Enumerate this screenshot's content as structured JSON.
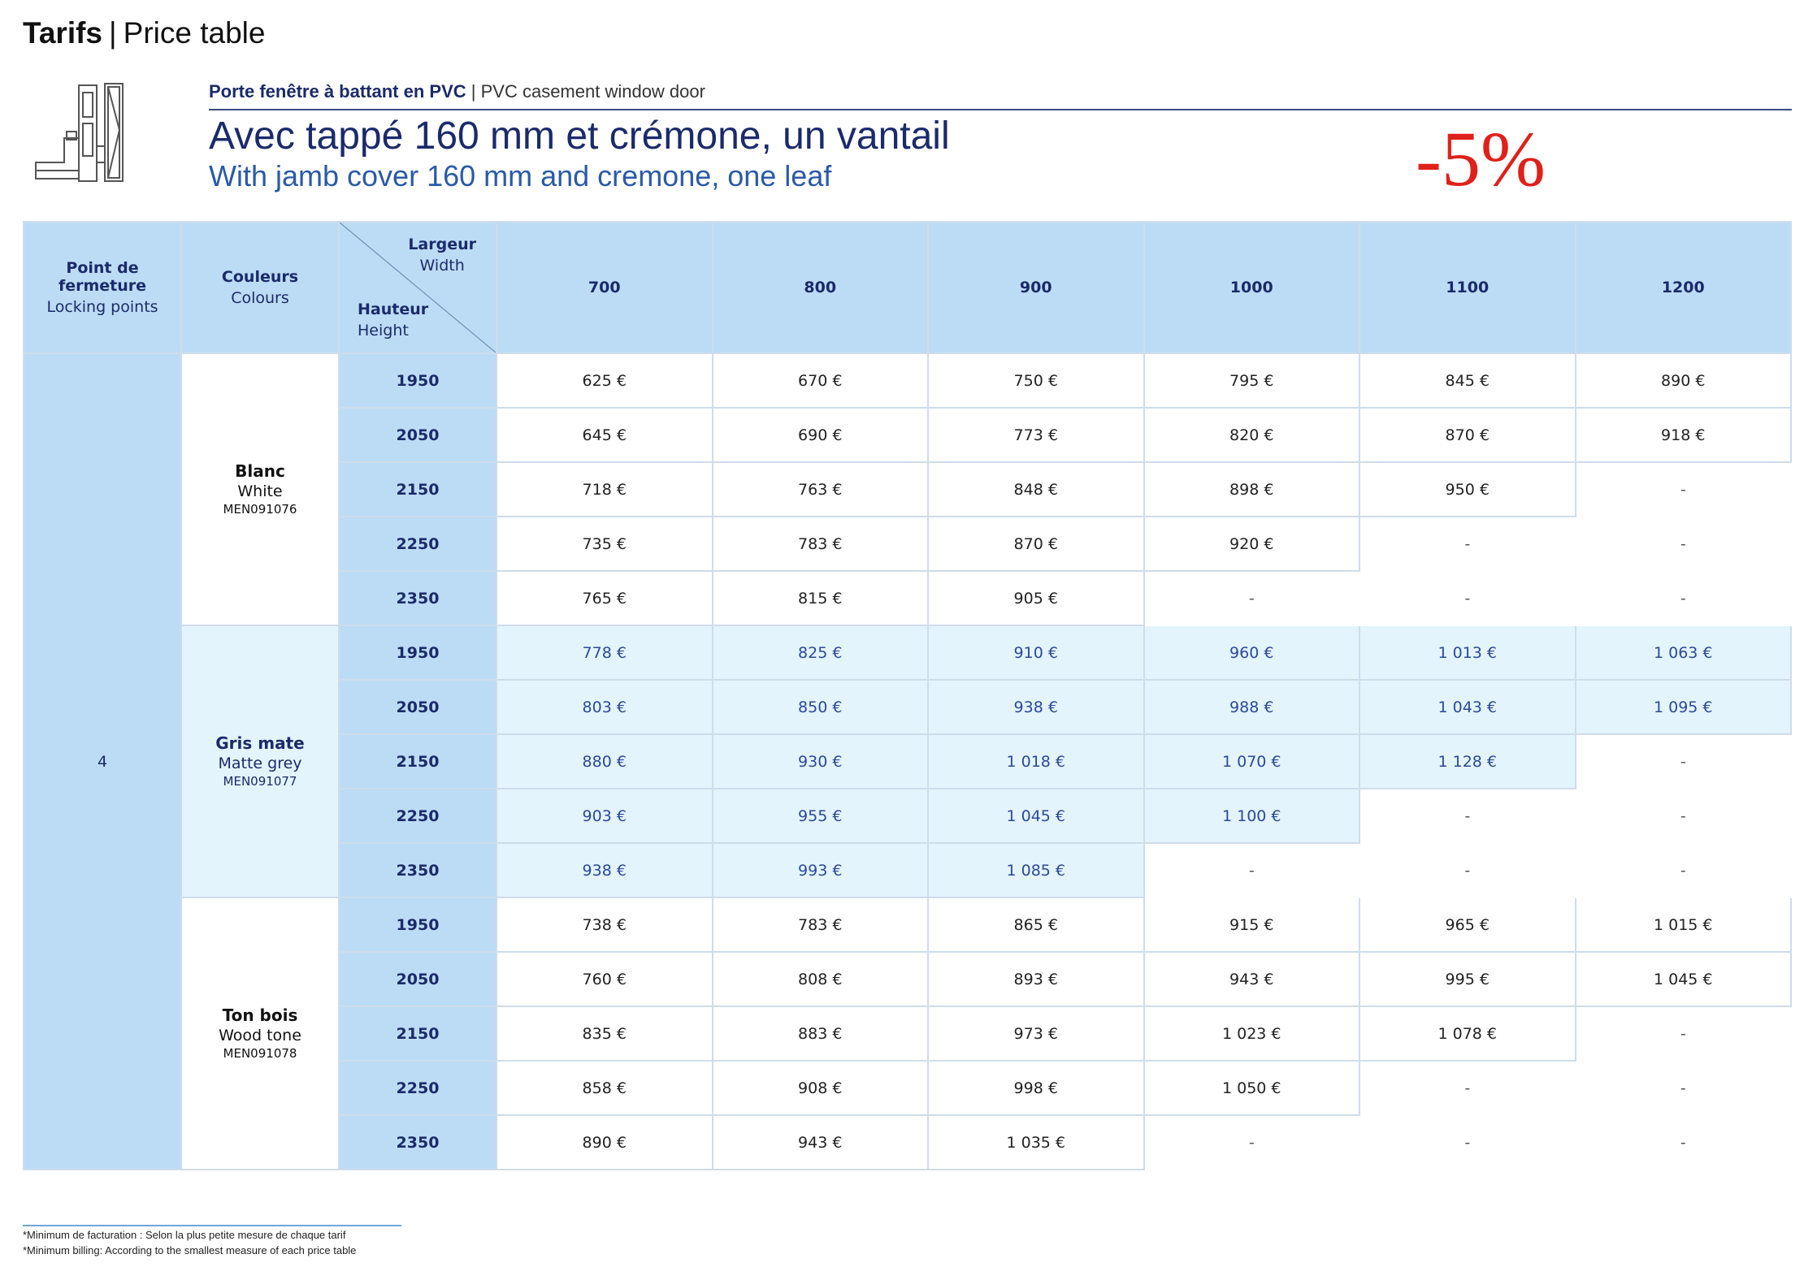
{
  "header": {
    "title_bold": "Tarifs",
    "title_separator": "|",
    "title_en": "Price table"
  },
  "product": {
    "subtitle_fr": "Porte fenêtre à battant en PVC",
    "subtitle_separator": "|",
    "subtitle_en": "PVC casement window door",
    "heading_fr": "Avec tappé 160 mm et crémone, un vantail",
    "heading_en": "With jamb cover 160 mm and cremone, one leaf",
    "discount": "-5%",
    "discount_color": "#e0201a"
  },
  "table": {
    "locking_header_fr": "Point de fermeture",
    "locking_header_en": "Locking points",
    "colours_header_fr": "Couleurs",
    "colours_header_en": "Colours",
    "width_label_fr": "Largeur",
    "width_label_en": "Width",
    "height_label_fr": "Hauteur",
    "height_label_en": "Height",
    "widths": [
      "700",
      "800",
      "900",
      "1000",
      "1100",
      "1200"
    ],
    "locking_points": "4",
    "groups": [
      {
        "name_fr": "Blanc",
        "name_en": "White",
        "code": "MEN091076",
        "rows": [
          {
            "height": "1950",
            "prices": [
              "625 €",
              "670 €",
              "750 €",
              "795 €",
              "845 €",
              "890 €"
            ]
          },
          {
            "height": "2050",
            "prices": [
              "645 €",
              "690 €",
              "773 €",
              "820 €",
              "870 €",
              "918 €"
            ]
          },
          {
            "height": "2150",
            "prices": [
              "718 €",
              "763 €",
              "848 €",
              "898 €",
              "950 €",
              "-"
            ]
          },
          {
            "height": "2250",
            "prices": [
              "735 €",
              "783 €",
              "870 €",
              "920 €",
              "-",
              "-"
            ]
          },
          {
            "height": "2350",
            "prices": [
              "765 €",
              "815 €",
              "905 €",
              "-",
              "-",
              "-"
            ]
          }
        ]
      },
      {
        "name_fr": "Gris mate",
        "name_en": "Matte grey",
        "code": "MEN091077",
        "rows": [
          {
            "height": "1950",
            "prices": [
              "778 €",
              "825 €",
              "910 €",
              "960 €",
              "1 013 €",
              "1 063 €"
            ]
          },
          {
            "height": "2050",
            "prices": [
              "803 €",
              "850 €",
              "938 €",
              "988 €",
              "1 043 €",
              "1 095 €"
            ]
          },
          {
            "height": "2150",
            "prices": [
              "880 €",
              "930 €",
              "1 018 €",
              "1 070 €",
              "1 128 €",
              "-"
            ]
          },
          {
            "height": "2250",
            "prices": [
              "903 €",
              "955 €",
              "1 045 €",
              "1 100 €",
              "-",
              "-"
            ]
          },
          {
            "height": "2350",
            "prices": [
              "938 €",
              "993 €",
              "1 085 €",
              "-",
              "-",
              "-"
            ]
          }
        ]
      },
      {
        "name_fr": "Ton bois",
        "name_en": "Wood tone",
        "code": "MEN091078",
        "rows": [
          {
            "height": "1950",
            "prices": [
              "738 €",
              "783 €",
              "865 €",
              "915 €",
              "965 €",
              "1 015 €"
            ]
          },
          {
            "height": "2050",
            "prices": [
              "760 €",
              "808 €",
              "893 €",
              "943 €",
              "995 €",
              "1 045 €"
            ]
          },
          {
            "height": "2150",
            "prices": [
              "835 €",
              "883 €",
              "973 €",
              "1 023 €",
              "1 078 €",
              "-"
            ]
          },
          {
            "height": "2250",
            "prices": [
              "858 €",
              "908 €",
              "998 €",
              "1 050 €",
              "-",
              "-"
            ]
          },
          {
            "height": "2350",
            "prices": [
              "890 €",
              "943 €",
              "1 035 €",
              "-",
              "-",
              "-"
            ]
          }
        ]
      }
    ]
  },
  "footnote": {
    "line_fr": "*Minimum de facturation : Selon la plus petite mesure de chaque tarif",
    "line_en": "*Minimum billing: According to the smallest measure of each price table"
  }
}
